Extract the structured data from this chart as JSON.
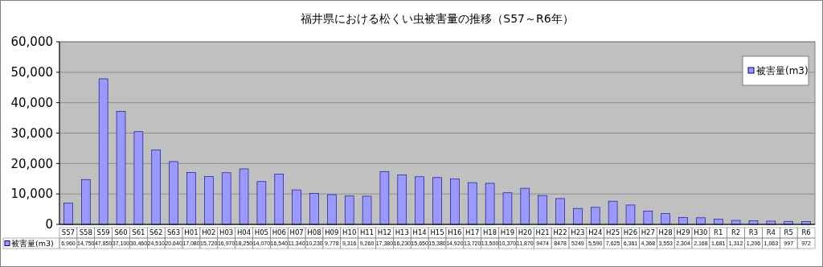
{
  "chart_data": {
    "type": "bar",
    "title": "福井県における松くい虫被害量の推移（S57～R6年）",
    "categories": [
      "S57",
      "S58",
      "S59",
      "S60",
      "S61",
      "S62",
      "S63",
      "H01",
      "H02",
      "H03",
      "H04",
      "H05",
      "H06",
      "H07",
      "H08",
      "H09",
      "H10",
      "H11",
      "H12",
      "H13",
      "H14",
      "H15",
      "H16",
      "H17",
      "H18",
      "H19",
      "H20",
      "H21",
      "H22",
      "H23",
      "H24",
      "H25",
      "H26",
      "H27",
      "H28",
      "H29",
      "H30",
      "R1",
      "R2",
      "R3",
      "R4",
      "R5",
      "R6"
    ],
    "series": [
      {
        "name": "被害量(m3)",
        "color": "#9999ff",
        "values": [
          6960,
          14750,
          47850,
          37100,
          30460,
          24510,
          20640,
          17080,
          15720,
          16970,
          18250,
          14070,
          16540,
          11340,
          10230,
          9778,
          9316,
          9260,
          17380,
          16230,
          15650,
          15380,
          14920,
          13720,
          13500,
          10370,
          11870,
          9474,
          8478,
          5249,
          5590,
          7625,
          6361,
          4368,
          3553,
          2304,
          2168,
          1681,
          1312,
          1206,
          1063,
          997,
          972
        ],
        "value_labels": [
          "6,960",
          "14,750",
          "47,850",
          "37,100",
          "30,460",
          "24,510",
          "20,640",
          "17,080",
          "15,720",
          "16,970",
          "18,250",
          "14,070",
          "16,540",
          "11,340",
          "10,230",
          "9,778",
          "9,316",
          "9,260",
          "17,380",
          "16,230",
          "15,650",
          "15,380",
          "14,920",
          "13,720",
          "13,500",
          "10,370",
          "11,870",
          "9474",
          "8478",
          "5249",
          "5,590",
          "7,625",
          "6,361",
          "4,368",
          "3,553",
          "2,304",
          "2,168",
          "1,681",
          "1,312",
          "1,206",
          "1,063",
          "997",
          "972"
        ]
      }
    ],
    "ylim": [
      0,
      60000
    ],
    "yticks": [
      {
        "value": 0,
        "label": "0"
      },
      {
        "value": 10000,
        "label": "10,000"
      },
      {
        "value": 20000,
        "label": "20,000"
      },
      {
        "value": 30000,
        "label": "30,000"
      },
      {
        "value": 40000,
        "label": "40,000"
      },
      {
        "value": 50000,
        "label": "50,000"
      },
      {
        "value": 60000,
        "label": "60,000"
      }
    ],
    "grid": "y",
    "legend": "top right"
  }
}
